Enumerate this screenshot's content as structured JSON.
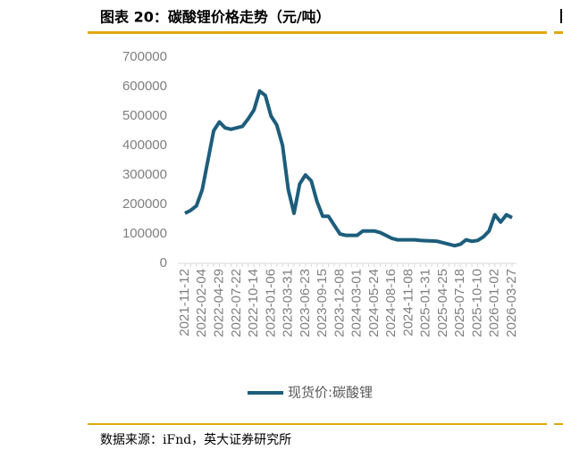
{
  "chart_data": {
    "type": "line",
    "title": "图表 20：碳酸锂价格走势（元/吨）",
    "source": "数据来源：iFnd，英大证券研究所",
    "categories": [
      "2021-11-12",
      null,
      null,
      "2022-02-04",
      null,
      null,
      "2022-04-29",
      null,
      null,
      "2022-07-22",
      null,
      null,
      "2022-10-14",
      null,
      null,
      "2023-01-06",
      null,
      null,
      "2023-03-31",
      null,
      null,
      "2023-06-23",
      null,
      null,
      "2023-09-15",
      null,
      null,
      "2023-12-08",
      null,
      null,
      "2024-03-01",
      null,
      null,
      "2024-05-24",
      null,
      null,
      "2024-08-16",
      null,
      null,
      "2024-11-08",
      null,
      null,
      "2025-01-31",
      null,
      null,
      "2025-04-25",
      null,
      null,
      "2025-07-18",
      null,
      null,
      "2025-10-10",
      null,
      null,
      "2026-01-02",
      null,
      null,
      "2026-03-27"
    ],
    "series": [
      {
        "name": "现货价:碳酸锂",
        "color": "#1d5d7c",
        "values": [
          170000,
          180000,
          195000,
          250000,
          350000,
          450000,
          480000,
          460000,
          455000,
          460000,
          465000,
          490000,
          520000,
          585000,
          570000,
          500000,
          470000,
          400000,
          250000,
          170000,
          270000,
          300000,
          280000,
          210000,
          160000,
          160000,
          130000,
          100000,
          95000,
          95000,
          95000,
          110000,
          110000,
          110000,
          105000,
          95000,
          85000,
          80000,
          80000,
          80000,
          80000,
          78000,
          77000,
          76000,
          75000,
          70000,
          65000,
          60000,
          65000,
          80000,
          75000,
          78000,
          90000,
          110000,
          165000,
          140000,
          165000,
          155000
        ]
      }
    ],
    "ylim": [
      0,
      700000
    ],
    "yticks": [
      0,
      100000,
      200000,
      300000,
      400000,
      500000,
      600000,
      700000
    ],
    "legend": "bottom"
  }
}
